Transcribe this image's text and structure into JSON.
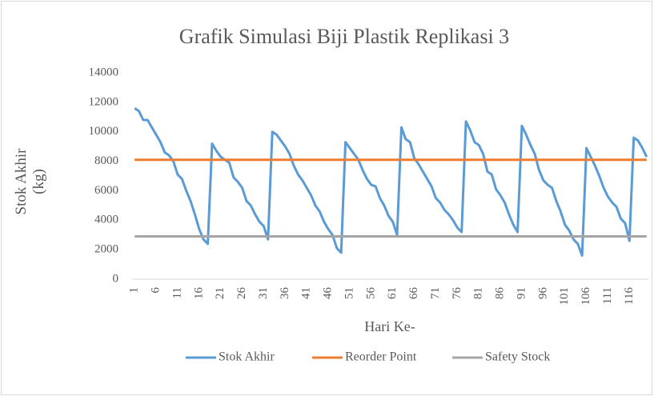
{
  "chart_data": {
    "type": "line",
    "title": "Grafik Simulasi Biji Plastik Replikasi 3",
    "x_label": "Hari Ke-",
    "y_label": "Stok Akhir (kg)",
    "categories": [
      1,
      null,
      null,
      null,
      null,
      6,
      null,
      null,
      null,
      null,
      11,
      null,
      null,
      null,
      null,
      16,
      null,
      null,
      null,
      null,
      21,
      null,
      null,
      null,
      null,
      26,
      null,
      null,
      null,
      null,
      31,
      null,
      null,
      null,
      null,
      36,
      null,
      null,
      null,
      null,
      41,
      null,
      null,
      null,
      null,
      46,
      null,
      null,
      null,
      null,
      51,
      null,
      null,
      null,
      null,
      56,
      null,
      null,
      null,
      null,
      61,
      null,
      null,
      null,
      null,
      66,
      null,
      null,
      null,
      null,
      71,
      null,
      null,
      null,
      null,
      76,
      null,
      null,
      null,
      null,
      81,
      null,
      null,
      null,
      null,
      86,
      null,
      null,
      null,
      null,
      91,
      null,
      null,
      null,
      null,
      96,
      null,
      null,
      null,
      null,
      101,
      null,
      null,
      null,
      null,
      106,
      null,
      null,
      null,
      null,
      111,
      null,
      null,
      null,
      null,
      116,
      null,
      null,
      null,
      null
    ],
    "series": [
      {
        "name": "Stok Akhir",
        "color": "#5b9bd5",
        "values": [
          11600,
          11400,
          10800,
          10800,
          10300,
          9800,
          9300,
          8600,
          8400,
          8000,
          7100,
          6800,
          6000,
          5300,
          4400,
          3400,
          2700,
          2400,
          9200,
          8700,
          8300,
          8100,
          7900,
          6900,
          6600,
          6200,
          5300,
          5000,
          4400,
          3900,
          3600,
          2700,
          10000,
          9800,
          9400,
          9000,
          8500,
          7700,
          7100,
          6700,
          6200,
          5700,
          5000,
          4600,
          3900,
          3400,
          3000,
          2100,
          1800,
          9300,
          8900,
          8500,
          8100,
          7400,
          6800,
          6400,
          6300,
          5500,
          5000,
          4300,
          3900,
          3000,
          10300,
          9500,
          9300,
          8200,
          7800,
          7300,
          6800,
          6300,
          5500,
          5200,
          4700,
          4400,
          4000,
          3500,
          3200,
          10700,
          10100,
          9300,
          9100,
          8500,
          7300,
          7100,
          6100,
          5700,
          5200,
          4400,
          3700,
          3200,
          10400,
          9800,
          9100,
          8500,
          7400,
          6700,
          6400,
          6200,
          5300,
          4600,
          3700,
          3300,
          2700,
          2400,
          1600,
          8900,
          8300,
          7700,
          7000,
          6200,
          5600,
          5200,
          4900,
          4100,
          3800,
          2600,
          9600,
          9400,
          8900,
          8300
        ]
      },
      {
        "name": "Reorder Point",
        "color": "#ed7d31",
        "values": [
          8100,
          8100,
          8100,
          8100,
          8100,
          8100,
          8100,
          8100,
          8100,
          8100,
          8100,
          8100,
          8100,
          8100,
          8100,
          8100,
          8100,
          8100,
          8100,
          8100,
          8100,
          8100,
          8100,
          8100,
          8100,
          8100,
          8100,
          8100,
          8100,
          8100,
          8100,
          8100,
          8100,
          8100,
          8100,
          8100,
          8100,
          8100,
          8100,
          8100,
          8100,
          8100,
          8100,
          8100,
          8100,
          8100,
          8100,
          8100,
          8100,
          8100,
          8100,
          8100,
          8100,
          8100,
          8100,
          8100,
          8100,
          8100,
          8100,
          8100,
          8100,
          8100,
          8100,
          8100,
          8100,
          8100,
          8100,
          8100,
          8100,
          8100,
          8100,
          8100,
          8100,
          8100,
          8100,
          8100,
          8100,
          8100,
          8100,
          8100,
          8100,
          8100,
          8100,
          8100,
          8100,
          8100,
          8100,
          8100,
          8100,
          8100,
          8100,
          8100,
          8100,
          8100,
          8100,
          8100,
          8100,
          8100,
          8100,
          8100,
          8100,
          8100,
          8100,
          8100,
          8100,
          8100,
          8100,
          8100,
          8100,
          8100,
          8100,
          8100,
          8100,
          8100,
          8100,
          8100,
          8100,
          8100,
          8100,
          8100
        ]
      },
      {
        "name": "Safety Stock",
        "color": "#a5a5a5",
        "values": [
          2900,
          2900,
          2900,
          2900,
          2900,
          2900,
          2900,
          2900,
          2900,
          2900,
          2900,
          2900,
          2900,
          2900,
          2900,
          2900,
          2900,
          2900,
          2900,
          2900,
          2900,
          2900,
          2900,
          2900,
          2900,
          2900,
          2900,
          2900,
          2900,
          2900,
          2900,
          2900,
          2900,
          2900,
          2900,
          2900,
          2900,
          2900,
          2900,
          2900,
          2900,
          2900,
          2900,
          2900,
          2900,
          2900,
          2900,
          2900,
          2900,
          2900,
          2900,
          2900,
          2900,
          2900,
          2900,
          2900,
          2900,
          2900,
          2900,
          2900,
          2900,
          2900,
          2900,
          2900,
          2900,
          2900,
          2900,
          2900,
          2900,
          2900,
          2900,
          2900,
          2900,
          2900,
          2900,
          2900,
          2900,
          2900,
          2900,
          2900,
          2900,
          2900,
          2900,
          2900,
          2900,
          2900,
          2900,
          2900,
          2900,
          2900,
          2900,
          2900,
          2900,
          2900,
          2900,
          2900,
          2900,
          2900,
          2900,
          2900,
          2900,
          2900,
          2900,
          2900,
          2900,
          2900,
          2900,
          2900,
          2900,
          2900,
          2900,
          2900,
          2900,
          2900,
          2900,
          2900,
          2900,
          2900,
          2900,
          2900
        ]
      }
    ],
    "ylim": [
      0,
      14000
    ],
    "yticks": [
      0,
      2000,
      4000,
      6000,
      8000,
      10000,
      12000,
      14000
    ],
    "grid": false,
    "legend": "bottom"
  }
}
